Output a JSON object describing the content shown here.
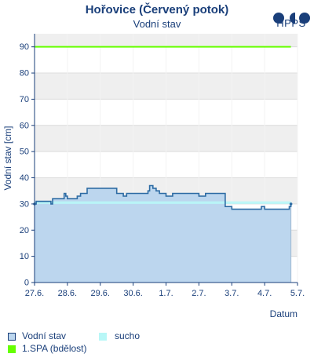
{
  "header": {
    "title": "Hořovice (Červený potok)",
    "subtitle": "Vodní stav",
    "logo_text": "HPPS"
  },
  "legend": [
    {
      "label": "Vodní stav",
      "color": "#2e6ca4"
    },
    {
      "label": "sucho",
      "color": "#b8f7f7"
    },
    {
      "label": "1.SPA (bdělost)",
      "color": "#66ff00"
    }
  ],
  "colors": {
    "water_fill": "#bcd6ee",
    "water_line": "#2e6ca4",
    "drought_band": "#b8f7f7",
    "spa_line": "#66ff00",
    "axis": "#1a3f7a",
    "band": "#efefef",
    "grid": "#dcdcdc"
  },
  "chart_data": {
    "type": "area",
    "title": "Hořovice (Červený potok)",
    "subtitle": "Vodní stav",
    "xlabel": "Datum",
    "ylabel": "Vodní stav [cm]",
    "xlim": [
      0,
      8
    ],
    "ylim": [
      0,
      95
    ],
    "x_ticks": [
      0,
      1,
      2,
      3,
      4,
      5,
      6,
      7,
      8
    ],
    "x_tick_labels": [
      "27.6.",
      "28.6.",
      "29.6.",
      "30.6.",
      "1.7.",
      "2.7.",
      "3.7.",
      "4.7.",
      "5.7."
    ],
    "y_ticks": [
      0,
      10,
      20,
      30,
      40,
      50,
      60,
      70,
      80,
      90
    ],
    "grid": "horizontal bands",
    "legend_position": "bottom",
    "series": [
      {
        "name": "Vodní stav",
        "step": true,
        "x": [
          0.0,
          0.05,
          0.5,
          0.55,
          0.85,
          0.9,
          0.95,
          1.0,
          1.3,
          1.4,
          1.6,
          2.5,
          2.6,
          2.7,
          2.8,
          3.0,
          3.4,
          3.45,
          3.5,
          3.55,
          3.6,
          3.7,
          3.8,
          4.0,
          4.2,
          4.35,
          4.5,
          4.7,
          5.0,
          5.1,
          5.2,
          5.5,
          5.7,
          5.8,
          6.0,
          6.3,
          6.5,
          6.9,
          7.0,
          7.3,
          7.75,
          7.8
        ],
        "y": [
          30,
          31,
          30,
          32,
          32,
          34,
          33,
          32,
          33,
          34,
          36,
          34,
          34,
          33,
          34,
          34,
          34,
          35,
          37,
          37,
          36,
          35,
          34,
          33,
          34,
          34,
          34,
          34,
          33,
          33,
          34,
          34,
          34,
          29,
          28,
          28,
          28,
          29,
          28,
          28,
          29,
          30
        ]
      },
      {
        "name": "sucho",
        "type": "band",
        "x": [
          0,
          7.8
        ],
        "y_bottom": 30,
        "y_top": 31
      },
      {
        "name": "1.SPA (bdělost)",
        "type": "hline",
        "x": [
          0,
          7.8
        ],
        "y": 90
      }
    ]
  }
}
